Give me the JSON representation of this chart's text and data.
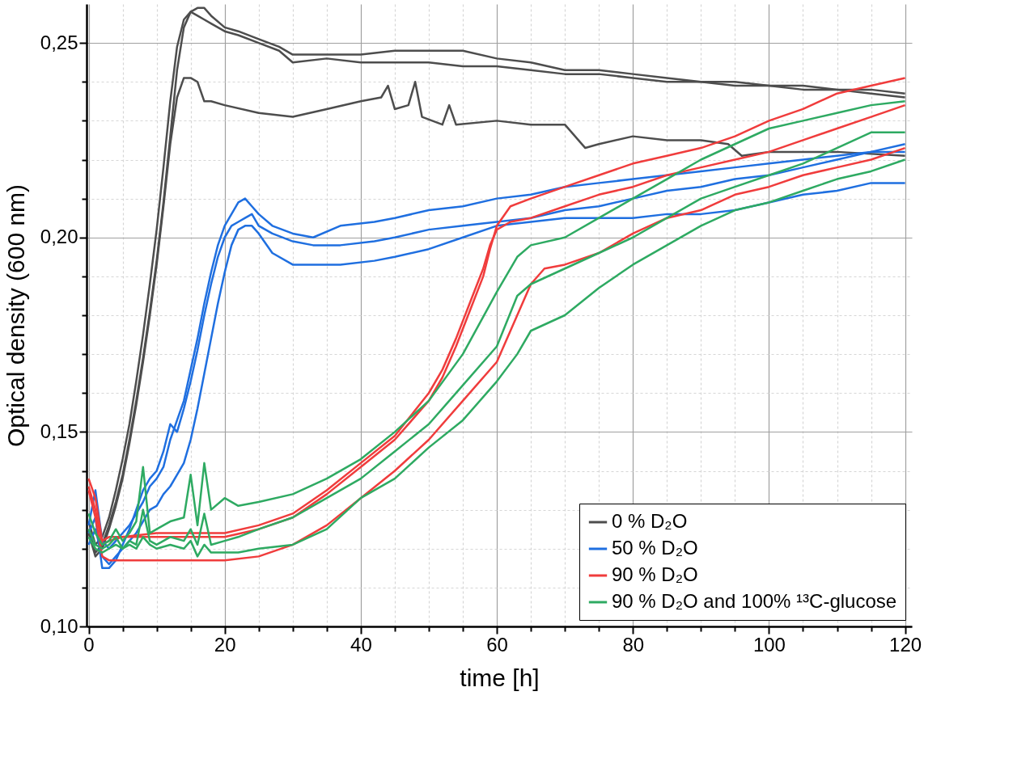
{
  "chart_data": {
    "type": "line",
    "xlabel": "time [h]",
    "ylabel": "Optical density (600 nm)",
    "xlim": [
      -0.3,
      121
    ],
    "ylim": [
      0.1,
      0.26
    ],
    "xticks": [
      0,
      {
        "value": 5,
        "label": null
      },
      {
        "value": 10,
        "label": null
      },
      {
        "value": 15,
        "label": null
      },
      20,
      {
        "value": 25,
        "label": null
      },
      {
        "value": 30,
        "label": null
      },
      {
        "value": 35,
        "label": null
      },
      40,
      {
        "value": 45,
        "label": null
      },
      {
        "value": 50,
        "label": null
      },
      {
        "value": 55,
        "label": null
      },
      60,
      {
        "value": 65,
        "label": null
      },
      {
        "value": 70,
        "label": null
      },
      {
        "value": 75,
        "label": null
      },
      80,
      {
        "value": 85,
        "label": null
      },
      {
        "value": 90,
        "label": null
      },
      {
        "value": 95,
        "label": null
      },
      100,
      {
        "value": 105,
        "label": null
      },
      {
        "value": 110,
        "label": null
      },
      {
        "value": 115,
        "label": null
      },
      120
    ],
    "yticks": [
      {
        "value": 0.1,
        "label": "0,10"
      },
      {
        "value": 0.11,
        "label": null
      },
      {
        "value": 0.12,
        "label": null
      },
      {
        "value": 0.13,
        "label": null
      },
      {
        "value": 0.14,
        "label": null
      },
      {
        "value": 0.15,
        "label": "0,15"
      },
      {
        "value": 0.16,
        "label": null
      },
      {
        "value": 0.17,
        "label": null
      },
      {
        "value": 0.18,
        "label": null
      },
      {
        "value": 0.19,
        "label": null
      },
      {
        "value": 0.2,
        "label": "0,20"
      },
      {
        "value": 0.21,
        "label": null
      },
      {
        "value": 0.22,
        "label": null
      },
      {
        "value": 0.23,
        "label": null
      },
      {
        "value": 0.24,
        "label": null
      },
      {
        "value": 0.25,
        "label": "0,25"
      }
    ],
    "grid": true,
    "legend": "bottom right",
    "marker": "none",
    "line_style": "solid",
    "series": [
      {
        "name": "0 % D₂O",
        "color": "#4d4d4d",
        "x": [
          0,
          1,
          2,
          3,
          4,
          5,
          6,
          7,
          8,
          9,
          10,
          11,
          12,
          13,
          14,
          15,
          16,
          17,
          18,
          20,
          22,
          25,
          28,
          30,
          35,
          40,
          45,
          50,
          55,
          60,
          65,
          70,
          75,
          80,
          85,
          90,
          95,
          100,
          105,
          110,
          115,
          120
        ],
        "values": [
          0.125,
          0.119,
          0.121,
          0.126,
          0.132,
          0.139,
          0.148,
          0.158,
          0.169,
          0.181,
          0.194,
          0.209,
          0.226,
          0.243,
          0.254,
          0.258,
          0.259,
          0.259,
          0.257,
          0.254,
          0.253,
          0.251,
          0.249,
          0.247,
          0.247,
          0.247,
          0.248,
          0.248,
          0.248,
          0.246,
          0.245,
          0.243,
          0.243,
          0.242,
          0.241,
          0.24,
          0.24,
          0.239,
          0.239,
          0.238,
          0.238,
          0.237
        ]
      },
      {
        "color": "#4d4d4d",
        "x": [
          0,
          1,
          2,
          3,
          4,
          5,
          6,
          7,
          8,
          9,
          10,
          11,
          12,
          13,
          14,
          15,
          16,
          17,
          18,
          20,
          22,
          25,
          28,
          30,
          35,
          40,
          45,
          50,
          55,
          60,
          65,
          70,
          75,
          80,
          85,
          90,
          95,
          100,
          105,
          110,
          115,
          120
        ],
        "values": [
          0.127,
          0.121,
          0.123,
          0.128,
          0.135,
          0.143,
          0.152,
          0.163,
          0.175,
          0.188,
          0.202,
          0.218,
          0.235,
          0.249,
          0.256,
          0.258,
          0.257,
          0.256,
          0.255,
          0.253,
          0.252,
          0.25,
          0.248,
          0.245,
          0.246,
          0.245,
          0.245,
          0.245,
          0.244,
          0.244,
          0.243,
          0.242,
          0.242,
          0.241,
          0.24,
          0.24,
          0.239,
          0.239,
          0.238,
          0.238,
          0.237,
          0.236
        ]
      },
      {
        "color": "#4d4d4d",
        "x": [
          0,
          1,
          2,
          3,
          4,
          5,
          6,
          7,
          8,
          9,
          10,
          11,
          12,
          13,
          14,
          15,
          16,
          17,
          18,
          20,
          25,
          30,
          35,
          40,
          43,
          44,
          45,
          47,
          48,
          49,
          52,
          53,
          54,
          60,
          65,
          70,
          73,
          75,
          80,
          85,
          90,
          94,
          96,
          100,
          110,
          120
        ],
        "values": [
          0.124,
          0.118,
          0.12,
          0.125,
          0.131,
          0.138,
          0.147,
          0.157,
          0.168,
          0.18,
          0.193,
          0.208,
          0.224,
          0.236,
          0.241,
          0.241,
          0.24,
          0.235,
          0.235,
          0.234,
          0.232,
          0.231,
          0.233,
          0.235,
          0.236,
          0.239,
          0.233,
          0.234,
          0.24,
          0.231,
          0.229,
          0.234,
          0.229,
          0.23,
          0.229,
          0.229,
          0.223,
          0.224,
          0.226,
          0.225,
          0.225,
          0.224,
          0.221,
          0.222,
          0.222,
          0.221
        ]
      },
      {
        "name": "50 % D₂O",
        "color": "#1f6fe0",
        "x": [
          0,
          1,
          2,
          3,
          4,
          5,
          6,
          7,
          8,
          9,
          10,
          11,
          12,
          13,
          14,
          15,
          16,
          17,
          18,
          19,
          20,
          21,
          22,
          23,
          24,
          25,
          27,
          30,
          33,
          37,
          42,
          45,
          50,
          55,
          60,
          65,
          70,
          75,
          80,
          85,
          90,
          95,
          100,
          105,
          110,
          115,
          120
        ],
        "values": [
          0.126,
          0.135,
          0.122,
          0.12,
          0.122,
          0.124,
          0.126,
          0.129,
          0.132,
          0.136,
          0.138,
          0.141,
          0.148,
          0.153,
          0.158,
          0.166,
          0.174,
          0.183,
          0.191,
          0.198,
          0.203,
          0.206,
          0.209,
          0.21,
          0.208,
          0.206,
          0.203,
          0.201,
          0.2,
          0.203,
          0.204,
          0.205,
          0.207,
          0.208,
          0.21,
          0.211,
          0.213,
          0.214,
          0.215,
          0.216,
          0.217,
          0.218,
          0.219,
          0.22,
          0.221,
          0.222,
          0.222
        ]
      },
      {
        "color": "#1f6fe0",
        "x": [
          0,
          1,
          2,
          3,
          4,
          5,
          6,
          7,
          8,
          9,
          10,
          11,
          12,
          13,
          14,
          15,
          16,
          17,
          18,
          19,
          20,
          21,
          22,
          23,
          24,
          25,
          27,
          30,
          33,
          37,
          42,
          45,
          50,
          55,
          60,
          65,
          70,
          75,
          80,
          85,
          90,
          95,
          100,
          105,
          110,
          115,
          120
        ],
        "values": [
          0.124,
          0.128,
          0.115,
          0.115,
          0.117,
          0.121,
          0.125,
          0.13,
          0.135,
          0.138,
          0.14,
          0.145,
          0.152,
          0.15,
          0.156,
          0.163,
          0.171,
          0.18,
          0.188,
          0.195,
          0.2,
          0.203,
          0.204,
          0.205,
          0.206,
          0.203,
          0.201,
          0.199,
          0.198,
          0.198,
          0.199,
          0.2,
          0.202,
          0.203,
          0.204,
          0.205,
          0.207,
          0.208,
          0.21,
          0.212,
          0.213,
          0.215,
          0.216,
          0.218,
          0.22,
          0.222,
          0.224
        ]
      },
      {
        "color": "#1f6fe0",
        "x": [
          0,
          1,
          2,
          3,
          4,
          5,
          6,
          7,
          8,
          9,
          10,
          11,
          12,
          13,
          14,
          15,
          16,
          17,
          18,
          19,
          20,
          21,
          22,
          23,
          24,
          25,
          27,
          30,
          33,
          37,
          42,
          45,
          50,
          55,
          60,
          65,
          70,
          75,
          80,
          85,
          90,
          95,
          100,
          105,
          110,
          115,
          120
        ],
        "values": [
          0.121,
          0.125,
          0.118,
          0.116,
          0.118,
          0.12,
          0.122,
          0.124,
          0.127,
          0.13,
          0.131,
          0.134,
          0.136,
          0.139,
          0.142,
          0.148,
          0.156,
          0.165,
          0.174,
          0.183,
          0.191,
          0.198,
          0.202,
          0.203,
          0.203,
          0.201,
          0.196,
          0.193,
          0.193,
          0.193,
          0.194,
          0.195,
          0.197,
          0.2,
          0.203,
          0.204,
          0.205,
          0.205,
          0.205,
          0.206,
          0.206,
          0.207,
          0.209,
          0.211,
          0.212,
          0.214,
          0.214
        ]
      },
      {
        "name": "90 % D₂O",
        "color": "#f03c3c",
        "x": [
          0,
          1,
          2,
          3,
          5,
          10,
          15,
          20,
          25,
          30,
          35,
          40,
          45,
          50,
          52,
          54,
          56,
          58,
          59,
          60,
          62,
          65,
          70,
          75,
          80,
          85,
          90,
          95,
          100,
          105,
          110,
          115,
          120
        ],
        "values": [
          0.138,
          0.133,
          0.122,
          0.123,
          0.123,
          0.123,
          0.123,
          0.123,
          0.125,
          0.128,
          0.134,
          0.141,
          0.148,
          0.158,
          0.164,
          0.172,
          0.181,
          0.19,
          0.197,
          0.203,
          0.208,
          0.21,
          0.213,
          0.216,
          0.219,
          0.221,
          0.223,
          0.226,
          0.23,
          0.233,
          0.237,
          0.239,
          0.241
        ]
      },
      {
        "color": "#f03c3c",
        "x": [
          0,
          1,
          2,
          3,
          5,
          10,
          15,
          20,
          25,
          30,
          35,
          40,
          45,
          50,
          52,
          54,
          56,
          58,
          59,
          60,
          62,
          65,
          70,
          75,
          80,
          85,
          90,
          95,
          100,
          105,
          110,
          115,
          120
        ],
        "values": [
          0.136,
          0.13,
          0.121,
          0.122,
          0.123,
          0.124,
          0.124,
          0.124,
          0.126,
          0.129,
          0.135,
          0.142,
          0.149,
          0.16,
          0.166,
          0.174,
          0.183,
          0.192,
          0.198,
          0.202,
          0.204,
          0.205,
          0.208,
          0.211,
          0.213,
          0.216,
          0.218,
          0.22,
          0.222,
          0.225,
          0.228,
          0.231,
          0.234
        ]
      },
      {
        "color": "#f03c3c",
        "x": [
          0,
          1,
          2,
          3,
          5,
          10,
          15,
          20,
          25,
          30,
          35,
          40,
          45,
          50,
          55,
          60,
          63,
          65,
          67,
          70,
          75,
          80,
          85,
          90,
          95,
          100,
          105,
          110,
          115,
          120
        ],
        "values": [
          0.135,
          0.128,
          0.118,
          0.117,
          0.117,
          0.117,
          0.117,
          0.117,
          0.118,
          0.121,
          0.126,
          0.133,
          0.14,
          0.148,
          0.158,
          0.168,
          0.18,
          0.188,
          0.192,
          0.193,
          0.196,
          0.201,
          0.205,
          0.207,
          0.211,
          0.213,
          0.216,
          0.218,
          0.22,
          0.223
        ]
      },
      {
        "name": "90 % D₂O and 100% ¹³C-glucose",
        "color": "#2eaa62",
        "x": [
          0,
          1,
          2,
          3,
          4,
          5,
          6,
          7,
          8,
          9,
          10,
          12,
          14,
          15,
          16,
          17,
          18,
          20,
          22,
          25,
          30,
          35,
          40,
          45,
          50,
          55,
          60,
          63,
          65,
          70,
          75,
          80,
          85,
          90,
          95,
          100,
          105,
          110,
          115,
          120
        ],
        "values": [
          0.129,
          0.124,
          0.121,
          0.122,
          0.125,
          0.122,
          0.124,
          0.127,
          0.141,
          0.124,
          0.125,
          0.127,
          0.128,
          0.139,
          0.126,
          0.142,
          0.13,
          0.133,
          0.131,
          0.132,
          0.134,
          0.138,
          0.143,
          0.15,
          0.158,
          0.17,
          0.186,
          0.195,
          0.198,
          0.2,
          0.205,
          0.21,
          0.215,
          0.22,
          0.224,
          0.228,
          0.23,
          0.232,
          0.234,
          0.235
        ]
      },
      {
        "color": "#2eaa62",
        "x": [
          0,
          1,
          2,
          3,
          4,
          5,
          6,
          7,
          8,
          9,
          10,
          12,
          14,
          15,
          16,
          17,
          18,
          20,
          22,
          25,
          30,
          35,
          40,
          45,
          50,
          55,
          60,
          63,
          65,
          70,
          75,
          80,
          85,
          90,
          95,
          100,
          105,
          110,
          115,
          120
        ],
        "values": [
          0.125,
          0.121,
          0.12,
          0.121,
          0.123,
          0.12,
          0.122,
          0.121,
          0.13,
          0.122,
          0.121,
          0.123,
          0.122,
          0.125,
          0.121,
          0.129,
          0.121,
          0.122,
          0.123,
          0.125,
          0.128,
          0.133,
          0.138,
          0.145,
          0.152,
          0.162,
          0.172,
          0.185,
          0.188,
          0.192,
          0.196,
          0.2,
          0.205,
          0.21,
          0.213,
          0.216,
          0.219,
          0.223,
          0.227,
          0.227
        ]
      },
      {
        "color": "#2eaa62",
        "x": [
          0,
          1,
          2,
          3,
          4,
          5,
          6,
          7,
          8,
          9,
          10,
          12,
          14,
          15,
          16,
          17,
          18,
          20,
          22,
          25,
          30,
          35,
          40,
          45,
          50,
          55,
          60,
          63,
          65,
          70,
          75,
          80,
          85,
          90,
          95,
          100,
          105,
          110,
          115,
          120
        ],
        "values": [
          0.123,
          0.12,
          0.119,
          0.12,
          0.121,
          0.12,
          0.121,
          0.12,
          0.123,
          0.121,
          0.12,
          0.121,
          0.12,
          0.122,
          0.118,
          0.121,
          0.119,
          0.119,
          0.119,
          0.12,
          0.121,
          0.125,
          0.133,
          0.138,
          0.146,
          0.153,
          0.163,
          0.17,
          0.176,
          0.18,
          0.187,
          0.193,
          0.198,
          0.203,
          0.207,
          0.209,
          0.212,
          0.215,
          0.217,
          0.22
        ]
      }
    ]
  }
}
